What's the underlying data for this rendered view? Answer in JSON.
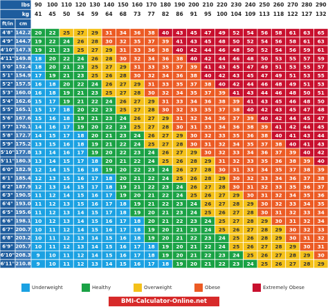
{
  "chart_data": {
    "type": "heatmap",
    "header": {
      "lbs": "lbs",
      "kg": "kg",
      "ftin": "ft/in",
      "cm": "cm"
    },
    "weights_lbs": [
      90,
      100,
      110,
      120,
      130,
      140,
      150,
      160,
      170,
      180,
      190,
      200,
      210,
      220,
      230,
      240,
      250,
      260,
      270,
      280,
      290
    ],
    "weights_kg": [
      41,
      45,
      50,
      54,
      59,
      64,
      68,
      73,
      77,
      82,
      86,
      91,
      95,
      100,
      104,
      109,
      113,
      118,
      122,
      127,
      132
    ],
    "heights_ftin": [
      "4'8\"",
      "4'9\"",
      "4'10\"",
      "4'11\"",
      "5'0\"",
      "5'1\"",
      "5'2\"",
      "5'3\"",
      "5'4\"",
      "5'5\"",
      "5'6\"",
      "5'7\"",
      "5'8\"",
      "5'9\"",
      "5'10\"",
      "5'11\"",
      "6'0\"",
      "6'1\"",
      "6'2\"",
      "6'3\"",
      "6'4\"",
      "6'5\"",
      "6'6\"",
      "6'7\"",
      "6'8\"",
      "6'9\"",
      "6'10\"",
      "6'11\""
    ],
    "heights_cm": [
      "142.2",
      "144.7",
      "147.3",
      "149.8",
      "152.4",
      "154.9",
      "157.5",
      "160.0",
      "162.6",
      "165.1",
      "167.6",
      "170.1",
      "172.7",
      "175.2",
      "177.8",
      "180.3",
      "182.9",
      "185.4",
      "187.9",
      "190.5",
      "193.0",
      "195.6",
      "198.1",
      "200.7",
      "203.2",
      "205.7",
      "208.3",
      "210.8"
    ],
    "values": [
      [
        20,
        22,
        25,
        27,
        29,
        31,
        34,
        36,
        38,
        40,
        43,
        45,
        47,
        49,
        52,
        54,
        56,
        58,
        61,
        63,
        65
      ],
      [
        19,
        22,
        24,
        26,
        28,
        30,
        32,
        35,
        37,
        39,
        41,
        43,
        45,
        48,
        50,
        52,
        54,
        56,
        58,
        61,
        63
      ],
      [
        19,
        21,
        23,
        25,
        27,
        29,
        31,
        33,
        36,
        38,
        40,
        42,
        44,
        46,
        48,
        50,
        52,
        54,
        56,
        59,
        61
      ],
      [
        18,
        20,
        22,
        24,
        26,
        28,
        30,
        32,
        34,
        36,
        38,
        40,
        42,
        44,
        46,
        48,
        50,
        53,
        55,
        57,
        59
      ],
      [
        18,
        20,
        21,
        23,
        25,
        27,
        29,
        31,
        33,
        35,
        37,
        39,
        41,
        43,
        45,
        47,
        49,
        51,
        53,
        55,
        57
      ],
      [
        17,
        19,
        21,
        23,
        25,
        26,
        28,
        30,
        32,
        34,
        36,
        38,
        40,
        42,
        43,
        45,
        47,
        49,
        51,
        53,
        55
      ],
      [
        16,
        18,
        20,
        22,
        24,
        26,
        27,
        29,
        31,
        33,
        35,
        37,
        38,
        40,
        42,
        44,
        46,
        48,
        49,
        51,
        53
      ],
      [
        16,
        18,
        19,
        21,
        23,
        25,
        27,
        28,
        30,
        32,
        34,
        35,
        37,
        39,
        41,
        43,
        44,
        46,
        48,
        50,
        51
      ],
      [
        15,
        17,
        19,
        21,
        22,
        24,
        26,
        27,
        29,
        31,
        33,
        34,
        36,
        38,
        39,
        41,
        43,
        45,
        46,
        48,
        50
      ],
      [
        15,
        17,
        18,
        20,
        22,
        23,
        25,
        27,
        28,
        30,
        32,
        33,
        35,
        37,
        38,
        40,
        42,
        43,
        45,
        47,
        48
      ],
      [
        15,
        16,
        18,
        19,
        21,
        23,
        24,
        26,
        27,
        29,
        31,
        32,
        34,
        36,
        37,
        39,
        40,
        42,
        44,
        45,
        47
      ],
      [
        14,
        16,
        17,
        19,
        20,
        22,
        23,
        25,
        27,
        28,
        30,
        31,
        33,
        34,
        36,
        38,
        39,
        41,
        42,
        44,
        45
      ],
      [
        14,
        15,
        17,
        18,
        20,
        21,
        23,
        24,
        26,
        27,
        29,
        30,
        32,
        33,
        35,
        36,
        38,
        40,
        41,
        43,
        44
      ],
      [
        13,
        15,
        16,
        18,
        19,
        21,
        22,
        24,
        25,
        27,
        28,
        30,
        31,
        32,
        34,
        35,
        37,
        38,
        40,
        41,
        43
      ],
      [
        13,
        14,
        16,
        17,
        19,
        20,
        22,
        23,
        24,
        26,
        27,
        29,
        30,
        32,
        33,
        34,
        36,
        37,
        39,
        40,
        42
      ],
      [
        13,
        14,
        15,
        17,
        18,
        20,
        21,
        22,
        24,
        25,
        26,
        28,
        29,
        31,
        32,
        33,
        35,
        36,
        38,
        39,
        40
      ],
      [
        12,
        14,
        15,
        16,
        18,
        19,
        20,
        22,
        23,
        24,
        26,
        27,
        28,
        30,
        31,
        33,
        34,
        35,
        37,
        38,
        39
      ],
      [
        12,
        13,
        15,
        16,
        17,
        18,
        20,
        21,
        22,
        24,
        25,
        26,
        28,
        29,
        30,
        32,
        33,
        34,
        36,
        37,
        38
      ],
      [
        12,
        13,
        14,
        15,
        17,
        18,
        19,
        21,
        22,
        23,
        24,
        26,
        27,
        28,
        30,
        31,
        32,
        33,
        35,
        36,
        37
      ],
      [
        11,
        12,
        14,
        15,
        16,
        17,
        19,
        20,
        21,
        22,
        24,
        25,
        26,
        27,
        29,
        30,
        31,
        32,
        34,
        35,
        36
      ],
      [
        11,
        12,
        13,
        15,
        16,
        17,
        18,
        19,
        21,
        22,
        23,
        24,
        26,
        27,
        28,
        29,
        30,
        32,
        33,
        34,
        35
      ],
      [
        11,
        12,
        13,
        14,
        15,
        17,
        18,
        19,
        20,
        21,
        23,
        24,
        25,
        26,
        27,
        28,
        30,
        31,
        32,
        33,
        34
      ],
      [
        10,
        12,
        13,
        14,
        15,
        16,
        17,
        18,
        20,
        21,
        22,
        23,
        24,
        25,
        27,
        28,
        29,
        30,
        31,
        32,
        34
      ],
      [
        10,
        11,
        12,
        14,
        15,
        16,
        17,
        18,
        19,
        20,
        21,
        23,
        24,
        25,
        26,
        27,
        28,
        29,
        30,
        32,
        33
      ],
      [
        10,
        11,
        12,
        13,
        14,
        15,
        16,
        18,
        19,
        20,
        21,
        22,
        23,
        24,
        25,
        26,
        28,
        29,
        30,
        31,
        32
      ],
      [
        10,
        11,
        12,
        13,
        14,
        15,
        16,
        17,
        18,
        19,
        20,
        21,
        22,
        24,
        25,
        26,
        27,
        28,
        29,
        30,
        31
      ],
      [
        9,
        10,
        11,
        12,
        14,
        15,
        16,
        17,
        18,
        19,
        20,
        21,
        22,
        23,
        24,
        25,
        26,
        27,
        28,
        29,
        30
      ],
      [
        9,
        10,
        11,
        12,
        13,
        14,
        15,
        16,
        17,
        18,
        19,
        20,
        21,
        22,
        23,
        24,
        25,
        26,
        27,
        28,
        29
      ]
    ],
    "categories": [
      {
        "label": "Underweight",
        "min": 0,
        "max": 18.5,
        "color": "#1ba1e2"
      },
      {
        "label": "Healthy",
        "min": 18.5,
        "max": 25,
        "color": "#1aa245"
      },
      {
        "label": "Overweight",
        "min": 25,
        "max": 30,
        "color": "#f4c11a"
      },
      {
        "label": "Obese",
        "min": 30,
        "max": 40,
        "color": "#ec5b24"
      },
      {
        "label": "Extremely Obese",
        "min": 40,
        "max": 999,
        "color": "#c8102e"
      }
    ],
    "header_color": "#1e5d9e",
    "cm_col_color": "#3d7ab8"
  },
  "footer": {
    "source": "BMI-Calculator-Online.net"
  }
}
